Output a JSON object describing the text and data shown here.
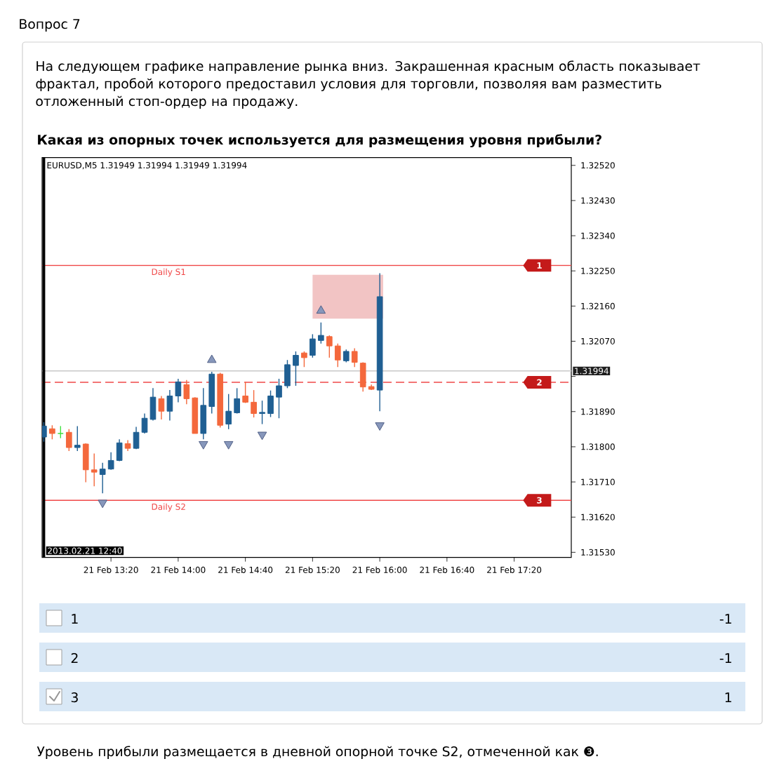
{
  "chart_data": {
    "type": "candlestick",
    "title": "Какая из опорных точек используется для размещения уровня прибыли?",
    "subtitle": "EURUSD,M5 1.31949 1.31994 1.31949 1.31994",
    "x": [
      "2013-02-21T12:40",
      "2013-02-21T12:45",
      "2013-02-21T12:50",
      "2013-02-21T12:55",
      "2013-02-21T13:00",
      "2013-02-21T13:05",
      "2013-02-21T13:10",
      "2013-02-21T13:15",
      "2013-02-21T13:20",
      "2013-02-21T13:25",
      "2013-02-21T13:30",
      "2013-02-21T13:35",
      "2013-02-21T13:40",
      "2013-02-21T13:45",
      "2013-02-21T13:50",
      "2013-02-21T13:55",
      "2013-02-21T14:00",
      "2013-02-21T14:05",
      "2013-02-21T14:10",
      "2013-02-21T14:15",
      "2013-02-21T14:20",
      "2013-02-21T14:25",
      "2013-02-21T14:30",
      "2013-02-21T14:35",
      "2013-02-21T14:40",
      "2013-02-21T14:45",
      "2013-02-21T14:50",
      "2013-02-21T14:55",
      "2013-02-21T15:00",
      "2013-02-21T15:05",
      "2013-02-21T15:10",
      "2013-02-21T15:15",
      "2013-02-21T15:20",
      "2013-02-21T15:25",
      "2013-02-21T15:30",
      "2013-02-21T15:35",
      "2013-02-21T15:40",
      "2013-02-21T15:45",
      "2013-02-21T15:50",
      "2013-02-21T15:55",
      "2013-02-21T16:00"
    ],
    "ohlc": [
      [
        1.31825,
        1.31863,
        1.31813,
        1.31853
      ],
      [
        1.31846,
        1.31855,
        1.31819,
        1.31834
      ],
      [
        1.31834,
        1.31853,
        1.31822,
        1.31834
      ],
      [
        1.31837,
        1.31845,
        1.31789,
        1.31798
      ],
      [
        1.31798,
        1.31853,
        1.31789,
        1.31804
      ],
      [
        1.31807,
        1.31809,
        1.31709,
        1.31741
      ],
      [
        1.31741,
        1.31783,
        1.31699,
        1.31735
      ],
      [
        1.31729,
        1.31759,
        1.31681,
        1.31743
      ],
      [
        1.31743,
        1.31786,
        1.31741,
        1.31765
      ],
      [
        1.31765,
        1.31819,
        1.31763,
        1.3181
      ],
      [
        1.31808,
        1.31817,
        1.31789,
        1.31796
      ],
      [
        1.31796,
        1.31851,
        1.31794,
        1.31837
      ],
      [
        1.31837,
        1.31885,
        1.31834,
        1.31873
      ],
      [
        1.3187,
        1.3195,
        1.31867,
        1.31927
      ],
      [
        1.31923,
        1.3193,
        1.3187,
        1.31891
      ],
      [
        1.31891,
        1.31945,
        1.31867,
        1.3193
      ],
      [
        1.3193,
        1.31974,
        1.31914,
        1.31966
      ],
      [
        1.31959,
        1.31971,
        1.31909,
        1.31923
      ],
      [
        1.31925,
        1.31927,
        1.31834,
        1.31834
      ],
      [
        1.31834,
        1.3195,
        1.31819,
        1.31906
      ],
      [
        1.31903,
        1.31992,
        1.31885,
        1.31986
      ],
      [
        1.31986,
        1.31989,
        1.31849,
        1.31855
      ],
      [
        1.31858,
        1.31935,
        1.31845,
        1.31891
      ],
      [
        1.31887,
        1.3195,
        1.31885,
        1.31923
      ],
      [
        1.3193,
        1.31966,
        1.31912,
        1.31914
      ],
      [
        1.31914,
        1.31945,
        1.31875,
        1.31885
      ],
      [
        1.31885,
        1.31918,
        1.31858,
        1.31888
      ],
      [
        1.31885,
        1.31944,
        1.31876,
        1.3193
      ],
      [
        1.31927,
        1.31974,
        1.31873,
        1.31956
      ],
      [
        1.31956,
        1.32022,
        1.3195,
        1.3201
      ],
      [
        1.32008,
        1.32044,
        1.31956,
        1.32034
      ],
      [
        1.3204,
        1.32044,
        1.32004,
        1.32028
      ],
      [
        1.32034,
        1.32088,
        1.32028,
        1.32076
      ],
      [
        1.32072,
        1.32118,
        1.32064,
        1.32085
      ],
      [
        1.32082,
        1.32085,
        1.32028,
        1.32058
      ],
      [
        1.32058,
        1.32064,
        1.32004,
        1.32022
      ],
      [
        1.3202,
        1.32049,
        1.32016,
        1.32044
      ],
      [
        1.32044,
        1.32052,
        1.32004,
        1.32016
      ],
      [
        1.32014,
        1.32016,
        1.31941,
        1.31953
      ],
      [
        1.31954,
        1.31959,
        1.31945,
        1.31947
      ],
      [
        1.31945,
        1.32244,
        1.31891,
        1.32184
      ]
    ],
    "colors": [
      "#1f5f93",
      "#f4683c",
      "#3ee03e",
      "#f4683c",
      "#1f5f93",
      "#f4683c",
      "#f4683c",
      "#1f5f93",
      "#1f5f93",
      "#1f5f93",
      "#f4683c",
      "#1f5f93",
      "#1f5f93",
      "#1f5f93",
      "#f4683c",
      "#1f5f93",
      "#1f5f93",
      "#f4683c",
      "#f4683c",
      "#1f5f93",
      "#1f5f93",
      "#f4683c",
      "#1f5f93",
      "#1f5f93",
      "#f4683c",
      "#f4683c",
      "#1f5f93",
      "#1f5f93",
      "#1f5f93",
      "#1f5f93",
      "#1f5f93",
      "#f4683c",
      "#1f5f93",
      "#1f5f93",
      "#f4683c",
      "#f4683c",
      "#1f5f93",
      "#f4683c",
      "#f4683c",
      "#f4683c",
      "#1f5f93"
    ],
    "series": [
      {
        "type": "area",
        "x": [
          "2013-02-21T15:20",
          "2013-02-21T16:02"
        ],
        "values": [
          null,
          null
        ],
        "lower": [
          1.32128,
          1.32128
        ],
        "upper": [
          1.3224,
          1.3224
        ],
        "color": "#f2c4c4"
      },
      {
        "type": "scatter",
        "x": [
          "2013-02-21T14:20",
          "2013-02-21T15:25"
        ],
        "values": [
          1.32022,
          1.32148
        ],
        "color": "#8797bb",
        "marker": "triangle"
      },
      {
        "type": "scatter",
        "x": [
          "2013-02-21T13:15",
          "2013-02-21T14:15",
          "2013-02-21T14:30",
          "2013-02-21T14:50",
          "2013-02-21T16:00"
        ],
        "values": [
          1.31657,
          1.31807,
          1.31807,
          1.31831,
          1.31855
        ],
        "color": "#8797bb",
        "marker": "triangle"
      }
    ],
    "xlim": [
      "2013-02-21T12:39",
      "2013-02-21T17:54"
    ],
    "xticks": [
      {
        "value": "2013-02-21T13:20",
        "label": "21 Feb 13:20"
      },
      {
        "value": "2013-02-21T14:00",
        "label": "21 Feb 14:00"
      },
      {
        "value": "2013-02-21T14:40",
        "label": "21 Feb 14:40"
      },
      {
        "value": "2013-02-21T15:20",
        "label": "21 Feb 15:20"
      },
      {
        "value": "2013-02-21T16:00",
        "label": "21 Feb 16:00"
      },
      {
        "value": "2013-02-21T16:40",
        "label": "21 Feb 16:40"
      },
      {
        "value": "2013-02-21T17:20",
        "label": "21 Feb 17:20"
      }
    ],
    "ylim": [
      1.31517,
      1.3254
    ],
    "yticks": [
      {
        "value": 1.3252,
        "label": "1.32520"
      },
      {
        "value": 1.3243,
        "label": "1.32430"
      },
      {
        "value": 1.3234,
        "label": "1.32340"
      },
      {
        "value": 1.3225,
        "label": "1.32250"
      },
      {
        "value": 1.3216,
        "label": "1.32160"
      },
      {
        "value": 1.3207,
        "label": "1.32070"
      },
      {
        "value": 1.3198,
        "label": null
      },
      {
        "value": 1.3189,
        "label": "1.31890"
      },
      {
        "value": 1.318,
        "label": "1.31800"
      },
      {
        "value": 1.3171,
        "label": "1.31710"
      },
      {
        "value": 1.3162,
        "label": "1.31620"
      },
      {
        "value": 1.3153,
        "label": "1.31530"
      }
    ],
    "ref_lines": [
      {
        "axis": "y",
        "value": 1.32264,
        "label": "Daily S1",
        "color": "#f04848"
      },
      {
        "axis": "y",
        "value": 1.31994,
        "color": "#c8c8c8"
      },
      {
        "axis": "y",
        "value": 1.31965,
        "color": "#f04848",
        "line_style": "dashed"
      },
      {
        "axis": "y",
        "value": 1.31663,
        "label": "Daily S2",
        "color": "#f04848"
      },
      {
        "axis": "x",
        "value": "2013-02-21T12:40",
        "color": "#000000"
      }
    ],
    "annotations": [
      "Вопрос 7",
      "На следующем графике направление рынка вниз. Закрашенная красным область показывает фрактал, пробой которого предоставил условия для торговли, позволяя вам разместить отложенный стоп-ордер на продажу.",
      "1",
      "-1",
      "2",
      "-1",
      "3",
      "1",
      "Уровень прибыли размещается в дневной опорной точке S2, отмеченной как ❸.",
      {
        "text": "1",
        "x": "2013-02-21T17:35",
        "y": 1.32264
      },
      {
        "text": "2",
        "x": "2013-02-21T17:35",
        "y": 1.31965
      },
      {
        "text": "3",
        "x": "2013-02-21T17:35",
        "y": 1.31663
      },
      {
        "text": "1.31994",
        "x": "2013-02-21T17:54",
        "y": 1.31994
      },
      {
        "text": "2013.02.21 12:40",
        "x": "2013-02-21T12:40"
      }
    ]
  }
}
